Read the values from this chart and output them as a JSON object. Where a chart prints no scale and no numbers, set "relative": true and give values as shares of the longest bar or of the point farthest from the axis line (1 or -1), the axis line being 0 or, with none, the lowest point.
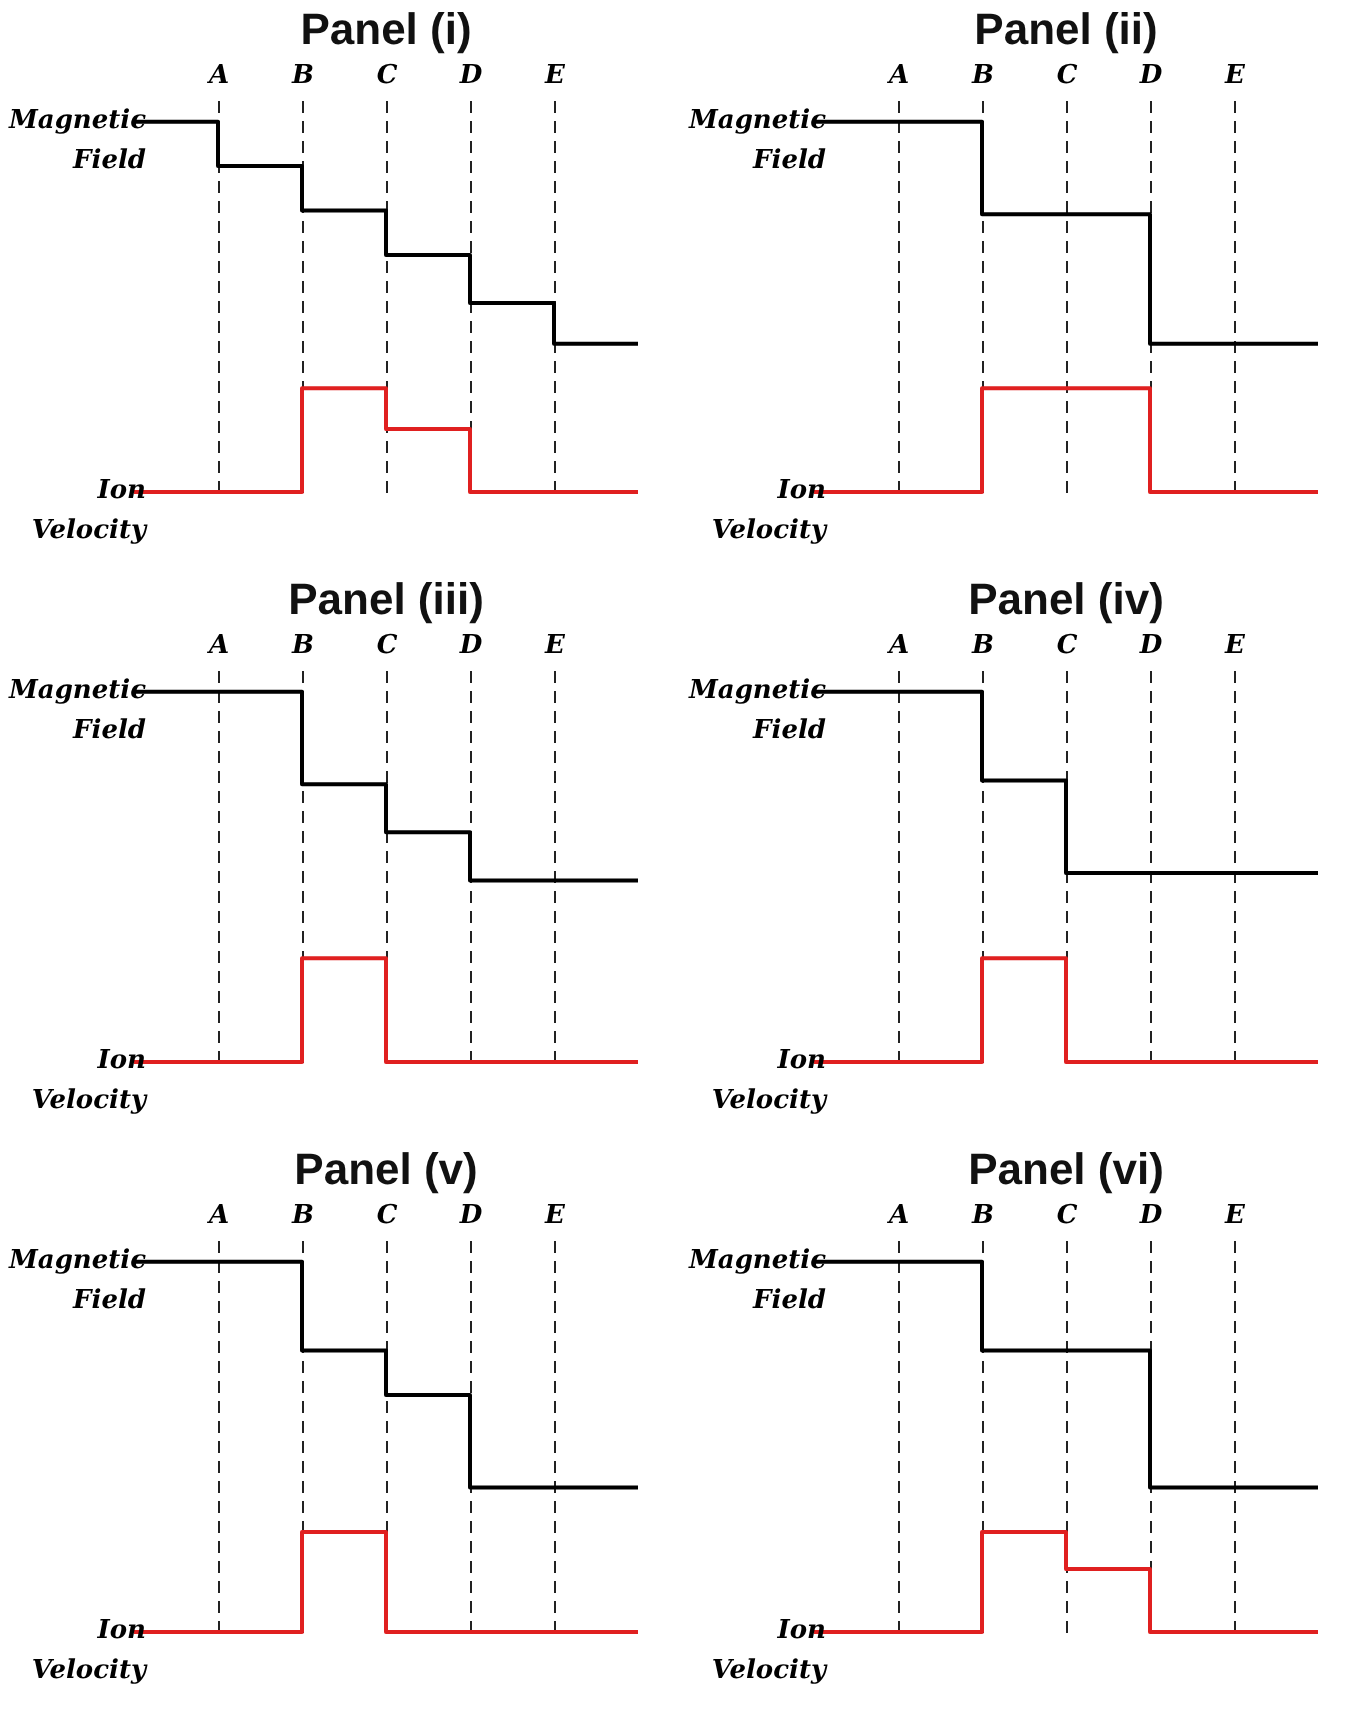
{
  "chart_data": [
    {
      "type": "step",
      "title": "Panel (i)",
      "relative": true,
      "tick_labels": "x",
      "grid": "x",
      "categories": [
        null,
        "A",
        "B",
        "C",
        "D",
        "E",
        null
      ],
      "series": [
        {
          "name": "Magnetic Field",
          "color": "#000000",
          "values": [
            1,
            0.88,
            0.76,
            0.64,
            0.51,
            0.4,
            0.4
          ]
        },
        {
          "name": "Ion Velocity",
          "color": "#e02020",
          "values": [
            0,
            0,
            0.28,
            0.17,
            0,
            0,
            0
          ]
        }
      ]
    },
    {
      "type": "step",
      "title": "Panel (ii)",
      "relative": true,
      "tick_labels": "x",
      "grid": "x",
      "categories": [
        null,
        "A",
        "B",
        "C",
        "D",
        "E",
        null
      ],
      "series": [
        {
          "name": "Magnetic Field",
          "color": "#000000",
          "values": [
            1,
            1,
            0.75,
            0.75,
            0.4,
            0.4,
            0.4
          ]
        },
        {
          "name": "Ion Velocity",
          "color": "#e02020",
          "values": [
            0,
            0,
            0.28,
            0.28,
            0,
            0,
            0
          ]
        }
      ]
    },
    {
      "type": "step",
      "title": "Panel (iii)",
      "relative": true,
      "tick_labels": "x",
      "grid": "x",
      "categories": [
        null,
        "A",
        "B",
        "C",
        "D",
        "E",
        null
      ],
      "series": [
        {
          "name": "Magnetic Field",
          "color": "#000000",
          "values": [
            1,
            1,
            0.75,
            0.62,
            0.49,
            0.49,
            0.49
          ]
        },
        {
          "name": "Ion Velocity",
          "color": "#e02020",
          "values": [
            0,
            0,
            0.28,
            0,
            0,
            0,
            0
          ]
        }
      ]
    },
    {
      "type": "step",
      "title": "Panel (iv)",
      "relative": true,
      "tick_labels": "x",
      "grid": "x",
      "categories": [
        null,
        "A",
        "B",
        "C",
        "D",
        "E",
        null
      ],
      "series": [
        {
          "name": "Magnetic Field",
          "color": "#000000",
          "values": [
            1,
            1,
            0.76,
            0.51,
            0.51,
            0.51,
            0.51
          ]
        },
        {
          "name": "Ion Velocity",
          "color": "#e02020",
          "values": [
            0,
            0,
            0.28,
            0,
            0,
            0,
            0
          ]
        }
      ]
    },
    {
      "type": "step",
      "title": "Panel (v)",
      "relative": true,
      "tick_labels": "x",
      "grid": "x",
      "categories": [
        null,
        "A",
        "B",
        "C",
        "D",
        "E",
        null
      ],
      "series": [
        {
          "name": "Magnetic Field",
          "color": "#000000",
          "values": [
            1,
            1,
            0.76,
            0.64,
            0.39,
            0.39,
            0.39
          ]
        },
        {
          "name": "Ion Velocity",
          "color": "#e02020",
          "values": [
            0,
            0,
            0.27,
            0,
            0,
            0,
            0
          ]
        }
      ]
    },
    {
      "type": "step",
      "title": "Panel (vi)",
      "relative": true,
      "tick_labels": "x",
      "grid": "x",
      "categories": [
        null,
        "A",
        "B",
        "C",
        "D",
        "E",
        null
      ],
      "series": [
        {
          "name": "Magnetic Field",
          "color": "#000000",
          "values": [
            1,
            1,
            0.76,
            0.76,
            0.39,
            0.39,
            0.39
          ]
        },
        {
          "name": "Ion Velocity",
          "color": "#e02020",
          "values": [
            0,
            0,
            0.27,
            0.17,
            0,
            0,
            0
          ]
        }
      ]
    }
  ]
}
